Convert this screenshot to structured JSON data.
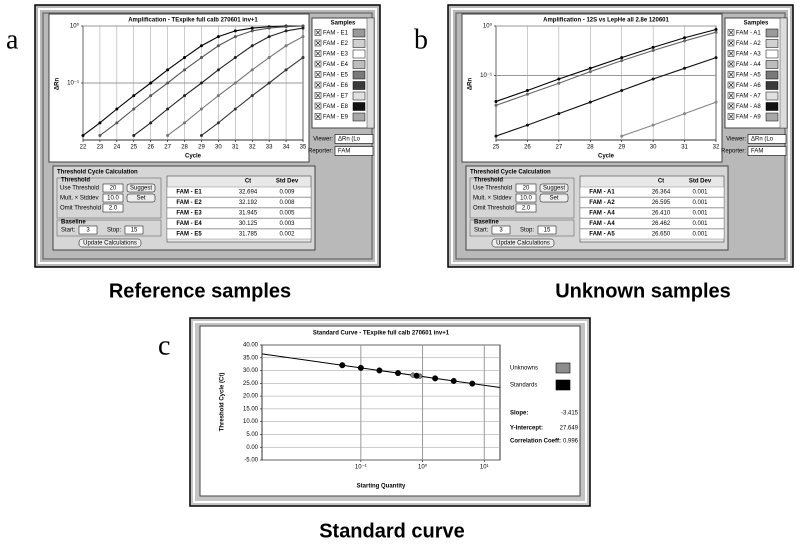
{
  "panel_letters": [
    "a",
    "b",
    "c"
  ],
  "captions": [
    "Reference samples",
    "Unknown samples",
    "Standard curve"
  ],
  "chart_data": [
    {
      "type": "line",
      "title": "Amplification - TExpike full calb 270601 inv+1",
      "x_label": "Cycle",
      "y_label": "ΔRn",
      "log_y": true,
      "grid": true,
      "x": [
        22,
        23,
        24,
        25,
        26,
        27,
        28,
        29,
        30,
        31,
        32,
        33,
        34,
        35
      ],
      "xlim": [
        22,
        35
      ],
      "xticks": [
        22,
        23,
        24,
        25,
        26,
        27,
        28,
        29,
        30,
        31,
        32,
        33,
        34,
        35
      ],
      "ylim": [
        0.01,
        1
      ],
      "yticks": [
        {
          "value": 0.1,
          "label": "10⁻¹"
        },
        {
          "value": 1,
          "label": "10⁰"
        }
      ],
      "series": [
        {
          "color": "#000000",
          "values": [
            0.012,
            0.02,
            0.035,
            0.06,
            0.1,
            0.17,
            0.28,
            0.45,
            0.65,
            0.82,
            0.92,
            0.97,
            1.0,
            1.0
          ]
        },
        {
          "color": "#555555",
          "values": [
            null,
            0.012,
            0.02,
            0.035,
            0.06,
            0.1,
            0.17,
            0.28,
            0.45,
            0.65,
            0.82,
            0.92,
            0.97,
            1.0
          ]
        },
        {
          "color": "#222222",
          "values": [
            null,
            null,
            null,
            0.012,
            0.02,
            0.035,
            0.06,
            0.1,
            0.17,
            0.28,
            0.45,
            0.65,
            0.82,
            0.92
          ]
        },
        {
          "color": "#777777",
          "values": [
            null,
            null,
            null,
            null,
            null,
            0.012,
            0.02,
            0.035,
            0.06,
            0.1,
            0.17,
            0.28,
            0.45,
            0.65
          ]
        },
        {
          "color": "#333333",
          "values": [
            null,
            null,
            null,
            null,
            null,
            null,
            null,
            0.012,
            0.02,
            0.035,
            0.06,
            0.1,
            0.17,
            0.28
          ]
        }
      ]
    },
    {
      "type": "line",
      "title": "Amplification - 12S vs LepHe all 2.8e 120601",
      "x_label": "Cycle",
      "y_label": "ΔRn",
      "log_y": true,
      "grid": true,
      "x": [
        25,
        26,
        27,
        28,
        29,
        30,
        31,
        32
      ],
      "xlim": [
        25,
        32
      ],
      "xticks": [
        25,
        26,
        27,
        28,
        29,
        30,
        31,
        32
      ],
      "ylim": [
        0.005,
        1
      ],
      "yticks": [
        {
          "value": 0.1,
          "label": "10⁻¹"
        },
        {
          "value": 1,
          "label": "10⁰"
        }
      ],
      "series": [
        {
          "color": "#000000",
          "values": [
            0.03,
            0.05,
            0.085,
            0.14,
            0.23,
            0.37,
            0.58,
            0.85
          ]
        },
        {
          "color": "#666666",
          "values": [
            0.025,
            0.042,
            0.07,
            0.12,
            0.2,
            0.32,
            0.5,
            0.75
          ]
        },
        {
          "color": "#111111",
          "values": [
            0.006,
            0.01,
            0.017,
            0.029,
            0.05,
            0.085,
            0.14,
            0.23
          ]
        },
        {
          "color": "#888888",
          "values": [
            null,
            null,
            null,
            null,
            0.006,
            0.01,
            0.017,
            0.029
          ]
        }
      ]
    },
    {
      "type": "scatter",
      "title": "Standard Curve - TExpike full calb 270601 inv+1",
      "x_label": "Starting Quantity",
      "y_label": "Threshold Cycle (Ct)",
      "log_x": true,
      "grid": true,
      "xlim": [
        0.0025,
        18
      ],
      "xticks": [
        {
          "value": 0.1,
          "label": "10⁻¹"
        },
        {
          "value": 1,
          "label": "10⁰"
        },
        {
          "value": 10,
          "label": "10¹"
        }
      ],
      "ylim": [
        -5,
        40
      ],
      "yticks": [
        {
          "value": 40,
          "label": "40.00"
        },
        {
          "value": 35,
          "label": "35.00"
        },
        {
          "value": 30,
          "label": "30.00"
        },
        {
          "value": 25,
          "label": "25.00"
        },
        {
          "value": 20,
          "label": "20.00"
        },
        {
          "value": 15,
          "label": "15.00"
        },
        {
          "value": 10,
          "label": "10.00"
        },
        {
          "value": 5,
          "label": "5.00"
        },
        {
          "value": 0,
          "label": "0.00"
        },
        {
          "value": -5,
          "label": "-5.00"
        }
      ],
      "series": [
        {
          "name": "Unknowns",
          "color": "#8c8c8c",
          "x": [
            0.7,
            0.9
          ],
          "values": [
            28.2,
            27.8
          ]
        },
        {
          "name": "Standards",
          "color": "#000000",
          "x": [
            0.05,
            0.1,
            0.2,
            0.4,
            0.8,
            1.6,
            3.2,
            6.4
          ],
          "values": [
            32.09,
            31.06,
            30.04,
            29.01,
            27.98,
            26.95,
            25.92,
            24.89
          ]
        }
      ],
      "stats": {
        "slope_label": "Slope:",
        "slope": -3.415,
        "intercept_label": "Y-Intercept:",
        "intercept": 27.649,
        "correlation_label": "Correlation Coeff:",
        "correlation": 0.996
      }
    }
  ],
  "panels": [
    {
      "samples_title": "Samples",
      "samples": [
        {
          "name": "FAM - E1",
          "color": "#9a9a9a"
        },
        {
          "name": "FAM - E2",
          "color": "#d0d0d0"
        },
        {
          "name": "FAM - E3",
          "color": "#ffffff"
        },
        {
          "name": "FAM - E4",
          "color": "#bdbdbd"
        },
        {
          "name": "FAM - E5",
          "color": "#7a7a7a"
        },
        {
          "name": "FAM - E6",
          "color": "#3a3a3a"
        },
        {
          "name": "FAM - E7",
          "color": "#e0e0e0"
        },
        {
          "name": "FAM - E8",
          "color": "#111111"
        },
        {
          "name": "FAM - E9",
          "color": "#a8a8a8"
        }
      ],
      "viewer_label": "Viewer:",
      "viewer_value": "ΔRn (Lo",
      "reporter_label": "Reporter:",
      "reporter_value": "FAM",
      "calc_title": "Threshold Cycle Calculation",
      "threshold_title": "Threshold",
      "fields": [
        {
          "label": "Use Threshold",
          "value": "20",
          "button": "Suggest"
        },
        {
          "label": "Mult. × Stddev",
          "value": "10.0",
          "button": "Set"
        },
        {
          "label": "Omit Threshold",
          "value": "2.0"
        }
      ],
      "baseline_title": "Baseline",
      "start_label": "Start:",
      "start": "3",
      "stop_label": "Stop:",
      "stop": "15",
      "update": "Update Calculations",
      "table": {
        "header": [
          "Ct",
          "Std Dev"
        ],
        "rows": [
          [
            "FAM - E1",
            "32.694",
            "0.009"
          ],
          [
            "FAM - E2",
            "32.192",
            "0.008"
          ],
          [
            "FAM - E3",
            "31.945",
            "0.005"
          ],
          [
            "FAM - E4",
            "30.125",
            "0.003"
          ],
          [
            "FAM - E5",
            "31.785",
            "0.002"
          ]
        ]
      }
    },
    {
      "samples_title": "Samples",
      "samples": [
        {
          "name": "FAM - A1",
          "color": "#9a9a9a"
        },
        {
          "name": "FAM - A2",
          "color": "#d0d0d0"
        },
        {
          "name": "FAM - A3",
          "color": "#ffffff"
        },
        {
          "name": "FAM - A4",
          "color": "#bdbdbd"
        },
        {
          "name": "FAM - A5",
          "color": "#7a7a7a"
        },
        {
          "name": "FAM - A6",
          "color": "#3a3a3a"
        },
        {
          "name": "FAM - A7",
          "color": "#e0e0e0"
        },
        {
          "name": "FAM - A8",
          "color": "#111111"
        },
        {
          "name": "FAM - A9",
          "color": "#a8a8a8"
        }
      ],
      "viewer_label": "Viewer:",
      "viewer_value": "ΔRn (Lo",
      "reporter_label": "Reporter:",
      "reporter_value": "FAM",
      "calc_title": "Threshold Cycle Calculation",
      "threshold_title": "Threshold",
      "fields": [
        {
          "label": "Use Threshold",
          "value": "20",
          "button": "Suggest"
        },
        {
          "label": "Mult. × Stddev",
          "value": "10.0",
          "button": "Set"
        },
        {
          "label": "Omit Threshold",
          "value": "2.0"
        }
      ],
      "baseline_title": "Baseline",
      "start_label": "Start:",
      "start": "3",
      "stop_label": "Stop:",
      "stop": "15",
      "update": "Update Calculations",
      "table": {
        "header": [
          "Ct",
          "Std Dev"
        ],
        "rows": [
          [
            "FAM - A1",
            "26.364",
            "0.001"
          ],
          [
            "FAM - A2",
            "26.595",
            "0.001"
          ],
          [
            "FAM - A4",
            "26.410",
            "0.001"
          ],
          [
            "FAM - A4",
            "26.462",
            "0.001"
          ],
          [
            "FAM - A5",
            "26.650",
            "0.001"
          ]
        ]
      }
    }
  ]
}
